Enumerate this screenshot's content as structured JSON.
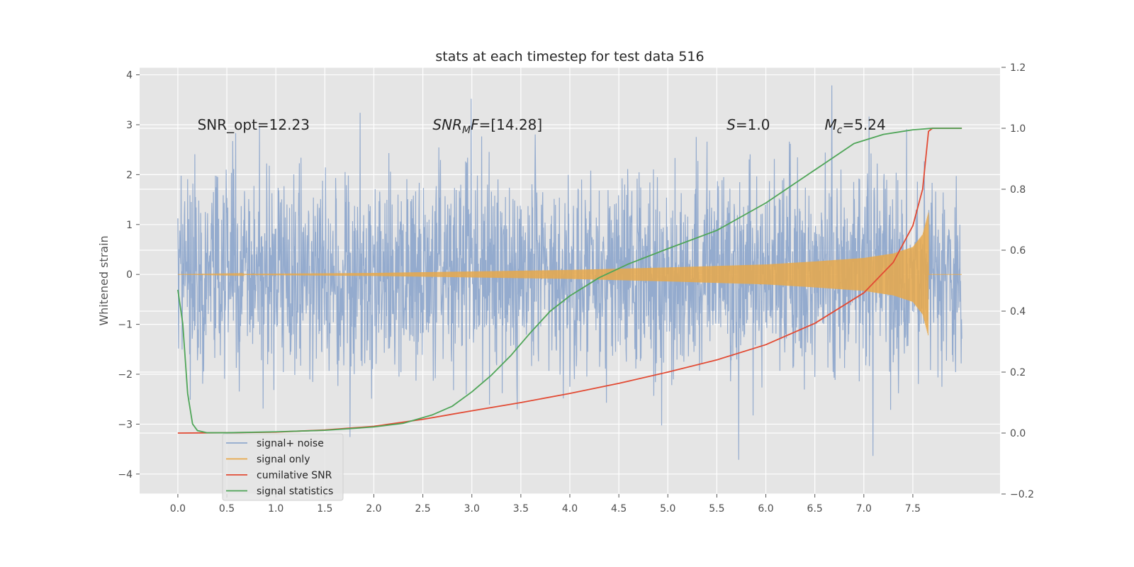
{
  "chart_data": {
    "type": "line",
    "title": "stats at each timestep for test data 516",
    "ylabel": "Whitened strain",
    "xlabel": "",
    "y2label": "",
    "xlim": [
      -0.39,
      8.39
    ],
    "ylim": [
      -4.4,
      4.15
    ],
    "y2lim": [
      -0.2,
      1.2
    ],
    "x_ticks": [
      0.0,
      0.5,
      1.0,
      1.5,
      2.0,
      2.5,
      3.0,
      3.5,
      4.0,
      4.5,
      5.0,
      5.5,
      6.0,
      6.5,
      7.0,
      7.5
    ],
    "x_tick_labels": [
      "0.0",
      "0.5",
      "1.0",
      "1.5",
      "2.0",
      "2.5",
      "3.0",
      "3.5",
      "4.0",
      "4.5",
      "5.0",
      "5.5",
      "6.0",
      "6.5",
      "7.0",
      "7.5"
    ],
    "y_ticks": [
      -4,
      -3,
      -2,
      -1,
      0,
      1,
      2,
      3,
      4
    ],
    "y_tick_labels": [
      "−4",
      "−3",
      "−2",
      "−1",
      "0",
      "1",
      "2",
      "3",
      "4"
    ],
    "y2_ticks": [
      -0.2,
      0.0,
      0.2,
      0.4,
      0.6,
      0.8,
      1.0,
      1.2
    ],
    "y2_tick_labels": [
      "−0.2",
      "0.0",
      "0.2",
      "0.4",
      "0.6",
      "0.8",
      "1.0",
      "1.2"
    ],
    "grid": true,
    "legend_position": "lower-left",
    "annotations": [
      {
        "text": "SNR_opt=12.23",
        "x": 0.2,
        "y": 3.0,
        "italic": false
      },
      {
        "text": "SNR_MF=[14.28]",
        "x": 2.6,
        "y": 3.0,
        "italic": true,
        "parts": [
          "SNR",
          "M",
          "F=[14.28]"
        ]
      },
      {
        "text": "S=1.0",
        "x": 5.6,
        "y": 3.0,
        "italic": true,
        "parts": [
          "S",
          "",
          "=1.0"
        ]
      },
      {
        "text": "M_c=5.24",
        "x": 6.6,
        "y": 3.0,
        "italic": true,
        "parts": [
          "M",
          "c",
          "=5.24"
        ]
      }
    ],
    "series": [
      {
        "name": "signal+ noise",
        "axis": "left",
        "color": "#8fa8cc",
        "kind": "noise",
        "x_range": [
          0.0,
          8.0
        ],
        "std": 1.0,
        "approx_extremes": {
          "max": 3.8,
          "min": -3.95
        }
      },
      {
        "name": "signal only",
        "axis": "left",
        "color": "#e8a84a",
        "kind": "chirp",
        "x_range": [
          0.0,
          8.0
        ],
        "merger_x": 7.66,
        "envelope": [
          [
            0.0,
            0.0
          ],
          [
            1.0,
            0.015
          ],
          [
            2.0,
            0.03
          ],
          [
            3.0,
            0.06
          ],
          [
            4.0,
            0.09
          ],
          [
            5.0,
            0.14
          ],
          [
            6.0,
            0.2
          ],
          [
            6.5,
            0.26
          ],
          [
            7.0,
            0.33
          ],
          [
            7.3,
            0.42
          ],
          [
            7.5,
            0.55
          ],
          [
            7.6,
            0.8
          ],
          [
            7.66,
            1.25
          ]
        ]
      },
      {
        "name": "cumilative SNR",
        "axis": "right",
        "color": "#e24a33",
        "kind": "line",
        "points": [
          [
            0.0,
            0.0
          ],
          [
            0.5,
            0.001
          ],
          [
            1.0,
            0.003
          ],
          [
            1.5,
            0.01
          ],
          [
            2.0,
            0.022
          ],
          [
            2.5,
            0.045
          ],
          [
            3.0,
            0.073
          ],
          [
            3.5,
            0.1
          ],
          [
            4.0,
            0.13
          ],
          [
            4.5,
            0.163
          ],
          [
            5.0,
            0.2
          ],
          [
            5.5,
            0.24
          ],
          [
            6.0,
            0.29
          ],
          [
            6.5,
            0.36
          ],
          [
            7.0,
            0.46
          ],
          [
            7.3,
            0.56
          ],
          [
            7.5,
            0.68
          ],
          [
            7.6,
            0.8
          ],
          [
            7.66,
            0.99
          ],
          [
            7.7,
            1.0
          ],
          [
            8.0,
            1.0
          ]
        ]
      },
      {
        "name": "signal statistics",
        "axis": "right",
        "color": "#4fa558",
        "kind": "line",
        "points": [
          [
            0.0,
            0.47
          ],
          [
            0.05,
            0.36
          ],
          [
            0.1,
            0.13
          ],
          [
            0.15,
            0.03
          ],
          [
            0.2,
            0.008
          ],
          [
            0.3,
            0.001
          ],
          [
            0.5,
            0.001
          ],
          [
            1.0,
            0.004
          ],
          [
            1.5,
            0.009
          ],
          [
            2.0,
            0.02
          ],
          [
            2.3,
            0.032
          ],
          [
            2.6,
            0.06
          ],
          [
            2.8,
            0.088
          ],
          [
            3.0,
            0.135
          ],
          [
            3.2,
            0.19
          ],
          [
            3.4,
            0.255
          ],
          [
            3.6,
            0.33
          ],
          [
            3.8,
            0.4
          ],
          [
            4.0,
            0.45
          ],
          [
            4.3,
            0.51
          ],
          [
            4.6,
            0.555
          ],
          [
            5.0,
            0.605
          ],
          [
            5.5,
            0.665
          ],
          [
            6.0,
            0.755
          ],
          [
            6.3,
            0.82
          ],
          [
            6.6,
            0.885
          ],
          [
            6.9,
            0.95
          ],
          [
            7.2,
            0.98
          ],
          [
            7.5,
            0.995
          ],
          [
            7.7,
            1.0
          ],
          [
            8.0,
            1.0
          ]
        ]
      }
    ]
  }
}
